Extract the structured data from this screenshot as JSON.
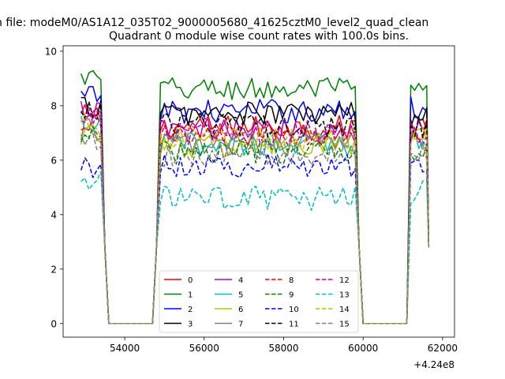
{
  "chart_data": {
    "type": "line",
    "suptitle": "n file: modeM0/AS1A12_035T02_9000005680_41625cztM0_level2_quad_clean",
    "title": "Quadrant 0 module wise count rates with 100.0s bins.",
    "xlabel": "",
    "ylabel": "",
    "x_offset_label": "+4.24e8",
    "xlim": [
      52450,
      62300
    ],
    "ylim": [
      -0.5,
      10.2
    ],
    "xticks": [
      54000,
      56000,
      58000,
      60000,
      62000
    ],
    "yticks": [
      0,
      2,
      4,
      6,
      8,
      10
    ],
    "legend_placement": "lower-center",
    "legend_columns": 4,
    "segments": [
      {
        "x_start": 52900,
        "x_end": 53400,
        "step": 100
      },
      {
        "x_start": 54900,
        "x_end": 59800,
        "step": 100
      },
      {
        "x_start": 61200,
        "x_end": 61600,
        "step": 100
      }
    ],
    "gap_points": [
      {
        "x": 53500,
        "y": 2.8
      },
      {
        "x": 53600,
        "y": 0
      },
      {
        "x": 54700,
        "y": 0
      },
      {
        "x": 54800,
        "y": 2.8
      },
      {
        "x": 59900,
        "y": 2.8
      },
      {
        "x": 60000,
        "y": 0
      },
      {
        "x": 61100,
        "y": 0
      },
      {
        "x": 61650,
        "y": 2.8
      }
    ],
    "series": [
      {
        "name": "0",
        "color": "#ff0000",
        "dash": "solid",
        "means": [
          7.6,
          7.2,
          7.4
        ]
      },
      {
        "name": "1",
        "color": "#008000",
        "dash": "solid",
        "means": [
          9.0,
          8.6,
          8.5
        ]
      },
      {
        "name": "2",
        "color": "#0000ff",
        "dash": "solid",
        "means": [
          8.3,
          7.8,
          7.9
        ]
      },
      {
        "name": "3",
        "color": "#000000",
        "dash": "solid",
        "means": [
          8.0,
          7.7,
          7.5
        ]
      },
      {
        "name": "4",
        "color": "#bf00bf",
        "dash": "solid",
        "means": [
          7.8,
          7.1,
          7.2
        ]
      },
      {
        "name": "5",
        "color": "#00bfbf",
        "dash": "solid",
        "means": [
          7.2,
          6.6,
          6.8
        ]
      },
      {
        "name": "6",
        "color": "#bfbf00",
        "dash": "solid",
        "means": [
          7.0,
          6.5,
          6.9
        ]
      },
      {
        "name": "7",
        "color": "#808080",
        "dash": "solid",
        "means": [
          7.1,
          6.6,
          6.6
        ]
      },
      {
        "name": "8",
        "color": "#ff0000",
        "dash": "dashed",
        "means": [
          7.4,
          6.9,
          7.1
        ]
      },
      {
        "name": "9",
        "color": "#008000",
        "dash": "dashed",
        "means": [
          6.9,
          6.3,
          6.4
        ]
      },
      {
        "name": "10",
        "color": "#0000ff",
        "dash": "dashed",
        "means": [
          5.8,
          5.8,
          5.9
        ]
      },
      {
        "name": "11",
        "color": "#000000",
        "dash": "dashed",
        "means": [
          7.9,
          7.3,
          7.2
        ]
      },
      {
        "name": "12",
        "color": "#bf00bf",
        "dash": "dashed",
        "means": [
          7.5,
          7.0,
          7.0
        ]
      },
      {
        "name": "13",
        "color": "#00bfbf",
        "dash": "dashed",
        "means": [
          5.2,
          4.6,
          4.8
        ]
      },
      {
        "name": "14",
        "color": "#bfbf00",
        "dash": "dashed",
        "means": [
          7.3,
          6.8,
          6.8
        ]
      },
      {
        "name": "15",
        "color": "#808080",
        "dash": "dashed",
        "means": [
          6.8,
          6.2,
          6.3
        ]
      }
    ]
  }
}
